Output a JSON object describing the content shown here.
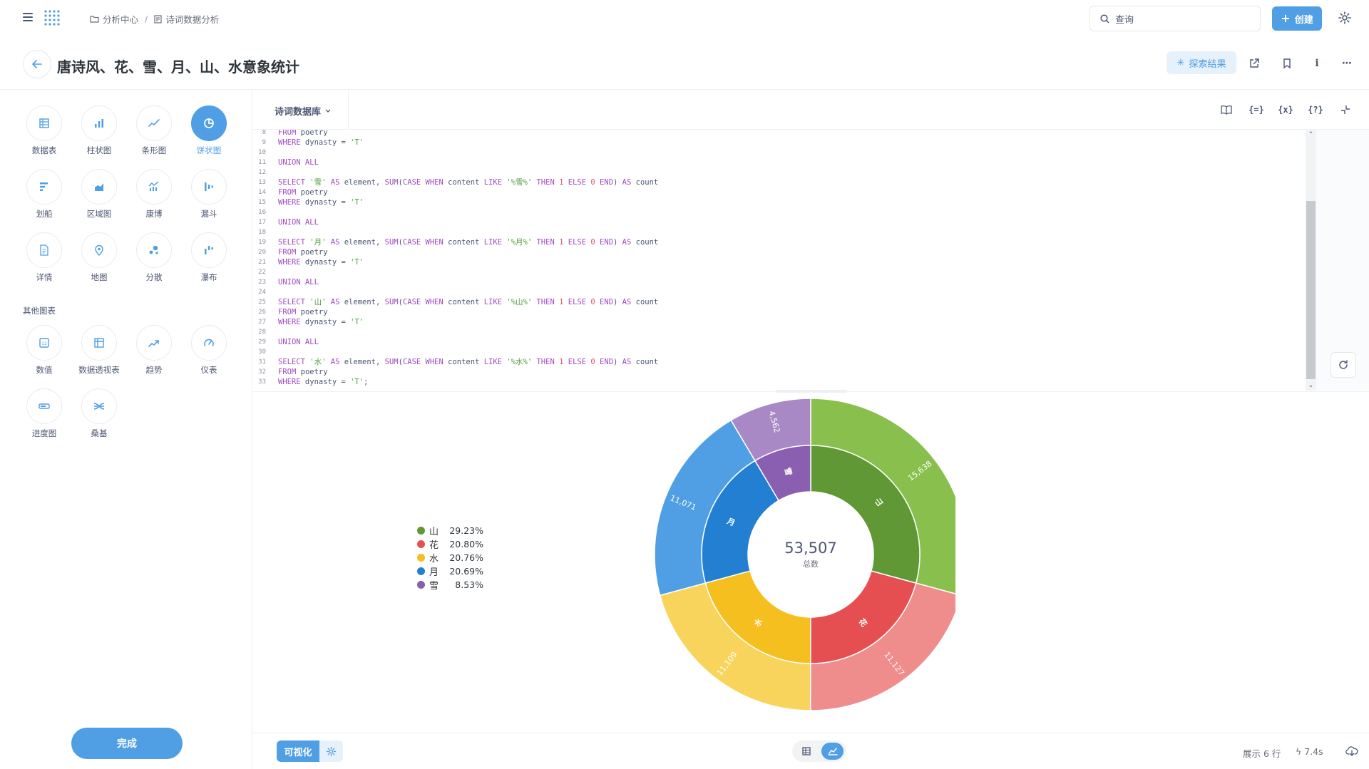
{
  "breadcrumb": {
    "collection": "分析中心",
    "question": "诗词数据分析"
  },
  "search": {
    "placeholder": "查询"
  },
  "topbar": {
    "create_label": "创建"
  },
  "title": {
    "text": "唐诗风、花、雪、月、山、水意象统计",
    "explore_label": "探索结果"
  },
  "viz_types": [
    {
      "label": "数据表",
      "icon": "table-icon"
    },
    {
      "label": "柱状图",
      "icon": "bar-chart-icon"
    },
    {
      "label": "条形图",
      "icon": "line-chart-icon"
    },
    {
      "label": "饼状图",
      "icon": "pie-chart-icon",
      "active": true
    },
    {
      "label": "划船",
      "icon": "row-chart-icon"
    },
    {
      "label": "区域图",
      "icon": "area-chart-icon"
    },
    {
      "label": "康博",
      "icon": "combo-chart-icon"
    },
    {
      "label": "漏斗",
      "icon": "funnel-icon"
    },
    {
      "label": "详情",
      "icon": "detail-icon"
    },
    {
      "label": "地图",
      "icon": "map-pin-icon"
    },
    {
      "label": "分散",
      "icon": "scatter-icon"
    },
    {
      "label": "瀑布",
      "icon": "waterfall-icon"
    }
  ],
  "other_charts_title": "其他图表",
  "other_viz_types": [
    {
      "label": "数值",
      "icon": "number-icon"
    },
    {
      "label": "数据透视表",
      "icon": "pivot-table-icon"
    },
    {
      "label": "趋势",
      "icon": "trend-icon"
    },
    {
      "label": "仪表",
      "icon": "gauge-icon"
    },
    {
      "label": "进度图",
      "icon": "progress-icon"
    },
    {
      "label": "桑基",
      "icon": "sankey-icon"
    }
  ],
  "done_label": "完成",
  "editor": {
    "database": "诗词数据库",
    "icons": [
      "book-icon",
      "variables-icon",
      "function-icon",
      "snippet-icon",
      "collapse-icon"
    ],
    "lines": [
      {
        "n": "8",
        "parts": [
          [
            "kw",
            "FROM"
          ],
          [
            "t",
            " poetry"
          ]
        ]
      },
      {
        "n": "9",
        "parts": [
          [
            "kw",
            "WHERE"
          ],
          [
            "t",
            " dynasty = "
          ],
          [
            "str",
            "'T'"
          ]
        ]
      },
      {
        "n": "10",
        "parts": []
      },
      {
        "n": "11",
        "parts": [
          [
            "kw",
            "UNION ALL"
          ]
        ]
      },
      {
        "n": "12",
        "parts": []
      },
      {
        "n": "13",
        "parts": [
          [
            "kw",
            "SELECT"
          ],
          [
            "t",
            " "
          ],
          [
            "str",
            "'雪'"
          ],
          [
            "t",
            " "
          ],
          [
            "kw",
            "AS"
          ],
          [
            "t",
            " element, "
          ],
          [
            "kw",
            "SUM"
          ],
          [
            "t",
            "("
          ],
          [
            "kw",
            "CASE WHEN"
          ],
          [
            "t",
            " content "
          ],
          [
            "kw",
            "LIKE"
          ],
          [
            "t",
            " "
          ],
          [
            "str",
            "'%雪%'"
          ],
          [
            "t",
            " "
          ],
          [
            "kw",
            "THEN"
          ],
          [
            "t",
            " "
          ],
          [
            "num",
            "1"
          ],
          [
            "t",
            " "
          ],
          [
            "kw",
            "ELSE"
          ],
          [
            "t",
            " "
          ],
          [
            "num",
            "0"
          ],
          [
            "t",
            " "
          ],
          [
            "kw",
            "END"
          ],
          [
            "t",
            ") "
          ],
          [
            "kw",
            "AS"
          ],
          [
            "t",
            " count"
          ]
        ]
      },
      {
        "n": "14",
        "parts": [
          [
            "kw",
            "FROM"
          ],
          [
            "t",
            " poetry"
          ]
        ]
      },
      {
        "n": "15",
        "parts": [
          [
            "kw",
            "WHERE"
          ],
          [
            "t",
            " dynasty = "
          ],
          [
            "str",
            "'T'"
          ]
        ]
      },
      {
        "n": "16",
        "parts": []
      },
      {
        "n": "17",
        "parts": [
          [
            "kw",
            "UNION ALL"
          ]
        ]
      },
      {
        "n": "18",
        "parts": []
      },
      {
        "n": "19",
        "parts": [
          [
            "kw",
            "SELECT"
          ],
          [
            "t",
            " "
          ],
          [
            "str",
            "'月'"
          ],
          [
            "t",
            " "
          ],
          [
            "kw",
            "AS"
          ],
          [
            "t",
            " element, "
          ],
          [
            "kw",
            "SUM"
          ],
          [
            "t",
            "("
          ],
          [
            "kw",
            "CASE WHEN"
          ],
          [
            "t",
            " content "
          ],
          [
            "kw",
            "LIKE"
          ],
          [
            "t",
            " "
          ],
          [
            "str",
            "'%月%'"
          ],
          [
            "t",
            " "
          ],
          [
            "kw",
            "THEN"
          ],
          [
            "t",
            " "
          ],
          [
            "num",
            "1"
          ],
          [
            "t",
            " "
          ],
          [
            "kw",
            "ELSE"
          ],
          [
            "t",
            " "
          ],
          [
            "num",
            "0"
          ],
          [
            "t",
            " "
          ],
          [
            "kw",
            "END"
          ],
          [
            "t",
            ") "
          ],
          [
            "kw",
            "AS"
          ],
          [
            "t",
            " count"
          ]
        ]
      },
      {
        "n": "20",
        "parts": [
          [
            "kw",
            "FROM"
          ],
          [
            "t",
            " poetry"
          ]
        ]
      },
      {
        "n": "21",
        "parts": [
          [
            "kw",
            "WHERE"
          ],
          [
            "t",
            " dynasty = "
          ],
          [
            "str",
            "'T'"
          ]
        ]
      },
      {
        "n": "22",
        "parts": []
      },
      {
        "n": "23",
        "parts": [
          [
            "kw",
            "UNION ALL"
          ]
        ]
      },
      {
        "n": "24",
        "parts": []
      },
      {
        "n": "25",
        "parts": [
          [
            "kw",
            "SELECT"
          ],
          [
            "t",
            " "
          ],
          [
            "str",
            "'山'"
          ],
          [
            "t",
            " "
          ],
          [
            "kw",
            "AS"
          ],
          [
            "t",
            " element, "
          ],
          [
            "kw",
            "SUM"
          ],
          [
            "t",
            "("
          ],
          [
            "kw",
            "CASE WHEN"
          ],
          [
            "t",
            " content "
          ],
          [
            "kw",
            "LIKE"
          ],
          [
            "t",
            " "
          ],
          [
            "str",
            "'%山%'"
          ],
          [
            "t",
            " "
          ],
          [
            "kw",
            "THEN"
          ],
          [
            "t",
            " "
          ],
          [
            "num",
            "1"
          ],
          [
            "t",
            " "
          ],
          [
            "kw",
            "ELSE"
          ],
          [
            "t",
            " "
          ],
          [
            "num",
            "0"
          ],
          [
            "t",
            " "
          ],
          [
            "kw",
            "END"
          ],
          [
            "t",
            ") "
          ],
          [
            "kw",
            "AS"
          ],
          [
            "t",
            " count"
          ]
        ]
      },
      {
        "n": "26",
        "parts": [
          [
            "kw",
            "FROM"
          ],
          [
            "t",
            " poetry"
          ]
        ]
      },
      {
        "n": "27",
        "parts": [
          [
            "kw",
            "WHERE"
          ],
          [
            "t",
            " dynasty = "
          ],
          [
            "str",
            "'T'"
          ]
        ]
      },
      {
        "n": "28",
        "parts": []
      },
      {
        "n": "29",
        "parts": [
          [
            "kw",
            "UNION ALL"
          ]
        ]
      },
      {
        "n": "30",
        "parts": []
      },
      {
        "n": "31",
        "parts": [
          [
            "kw",
            "SELECT"
          ],
          [
            "t",
            " "
          ],
          [
            "str",
            "'水'"
          ],
          [
            "t",
            " "
          ],
          [
            "kw",
            "AS"
          ],
          [
            "t",
            " element, "
          ],
          [
            "kw",
            "SUM"
          ],
          [
            "t",
            "("
          ],
          [
            "kw",
            "CASE WHEN"
          ],
          [
            "t",
            " content "
          ],
          [
            "kw",
            "LIKE"
          ],
          [
            "t",
            " "
          ],
          [
            "str",
            "'%水%'"
          ],
          [
            "t",
            " "
          ],
          [
            "kw",
            "THEN"
          ],
          [
            "t",
            " "
          ],
          [
            "num",
            "1"
          ],
          [
            "t",
            " "
          ],
          [
            "kw",
            "ELSE"
          ],
          [
            "t",
            " "
          ],
          [
            "num",
            "0"
          ],
          [
            "t",
            " "
          ],
          [
            "kw",
            "END"
          ],
          [
            "t",
            ") "
          ],
          [
            "kw",
            "AS"
          ],
          [
            "t",
            " count"
          ]
        ]
      },
      {
        "n": "32",
        "parts": [
          [
            "kw",
            "FROM"
          ],
          [
            "t",
            " poetry"
          ]
        ]
      },
      {
        "n": "33",
        "parts": [
          [
            "kw",
            "WHERE"
          ],
          [
            "t",
            " dynasty = "
          ],
          [
            "str",
            "'T'"
          ],
          [
            "t",
            ";"
          ]
        ]
      }
    ]
  },
  "chart_data": {
    "type": "pie",
    "variant": "donut-with-outer-ring",
    "total": "53,507",
    "total_label": "总数",
    "slices": [
      {
        "name": "山",
        "value": 15638,
        "value_label": "15,638",
        "percent": "29.23%",
        "color": "#5f9834",
        "outer_color": "#88bf4d"
      },
      {
        "name": "花",
        "value": 11127,
        "value_label": "11,127",
        "percent": "20.80%",
        "color": "#e54f52",
        "outer_color": "#ef8c8c"
      },
      {
        "name": "水",
        "value": 11109,
        "value_label": "11,109",
        "percent": "20.76%",
        "color": "#f5bf1f",
        "outer_color": "#f8d45c"
      },
      {
        "name": "月",
        "value": 11071,
        "value_label": "11,071",
        "percent": "20.69%",
        "color": "#227fd2",
        "outer_color": "#509ee3"
      },
      {
        "name": "雪",
        "value": 4562,
        "value_label": "4,562",
        "percent": "8.53%",
        "color": "#8a5eb0",
        "outer_color": "#a989c5"
      }
    ],
    "legend_position": "left"
  },
  "footer": {
    "viz_label": "可视化",
    "row_count": "展示 6 行",
    "timing": "7.4s"
  },
  "colors": {
    "accent": "#509ee3",
    "text": "#4c5773"
  }
}
